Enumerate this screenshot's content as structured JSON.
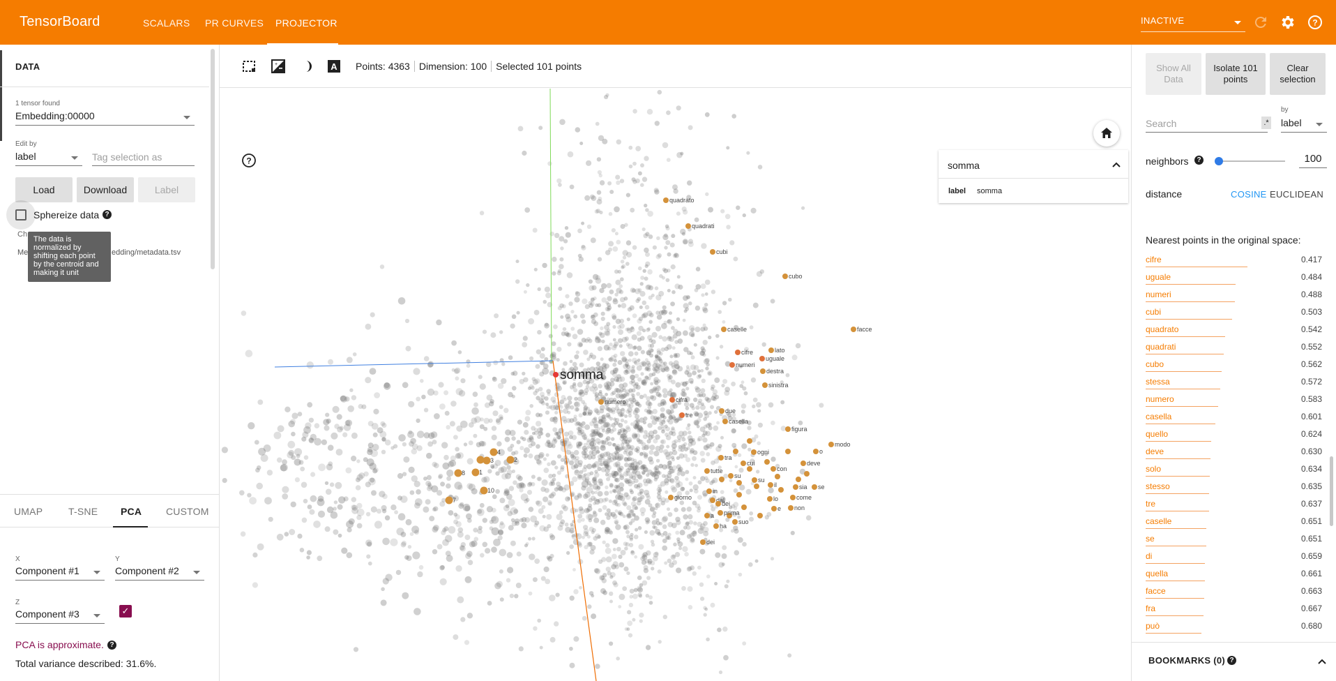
{
  "app": {
    "brand": "TensorBoard",
    "nav": [
      "SCALARS",
      "PR CURVES",
      "PROJECTOR"
    ],
    "active_tab": "PROJECTOR",
    "run_status": "INACTIVE"
  },
  "left": {
    "data_title": "DATA",
    "tensor_count": "1 tensor found",
    "tensor_select": "Embedding:00000",
    "edit_by_label": "Edit by",
    "edit_by_value": "label",
    "tag_placeholder": "Tag selection as",
    "buttons": {
      "load": "Load",
      "download": "Download",
      "label": "Label"
    },
    "sphereize_label": "Sphereize data",
    "sphereize_tooltip": "The data is normalized by shifting each point by the centroid and making it unit",
    "checkpoint_partial": "Ch",
    "metadata_partial": "Me",
    "metadata_path": "edding/metadata.tsv",
    "projection_tabs": [
      "UMAP",
      "T-SNE",
      "PCA",
      "CUSTOM"
    ],
    "active_projection": "PCA",
    "pca": {
      "x_label": "X",
      "x_value": "Component #1",
      "y_label": "Y",
      "y_value": "Component #2",
      "z_label": "Z",
      "z_value": "Component #3",
      "z_enabled": true,
      "approx": "PCA is approximate.",
      "variance": "Total variance described: 31.6%."
    }
  },
  "main": {
    "stats": {
      "points": "Points: 4363",
      "dimension": "Dimension: 100",
      "selected": "Selected 101 points"
    },
    "inspect": {
      "title": "somma",
      "key": "label",
      "value": "somma"
    },
    "focus_label": "somma",
    "labels": {
      "quadrato": "quadrato",
      "quadrati": "quadrati",
      "cubi": "cubi",
      "cubo": "cubo",
      "caselle": "caselle",
      "facce": "facce",
      "lato": "lato",
      "cifre": "cifre",
      "uguale": "uguale",
      "numeri": "numeri",
      "destra": "destra",
      "sinistra": "sinistra",
      "numero": "numero",
      "cifra": "cifra",
      "tre": "tre",
      "due": "due",
      "casella": "casella",
      "figura": "figura",
      "modo": "modo",
      "n4": "4",
      "n2": "2",
      "n5": "5",
      "n3": "3",
      "n8": "8",
      "n1": "1",
      "n10": "10",
      "n7": "7",
      "tra": "tra",
      "ogni": "ogni",
      "cui": "cui",
      "con": "con",
      "dev": "deve",
      "o": "o",
      "tutte": "tutte",
      "su": "su",
      "isu": "su",
      "il": "il",
      "sia": "sia",
      "se": "se",
      "giorno": "giorno",
      "lo": "lo",
      "come": "come",
      "dal": "dal",
      "in": "in",
      "dei": "dei",
      "e": "e",
      "non": "non",
      "prima": "prima",
      "a": "a",
      "suo": "suo",
      "ha": "ha",
      "dei2": "dei"
    }
  },
  "right": {
    "buttons": {
      "show_all": "Show All Data",
      "isolate": "Isolate 101 points",
      "clear": "Clear selection"
    },
    "search_placeholder": "Search",
    "regex": ".*",
    "by_label": "by",
    "by_value": "label",
    "neighbors_label": "neighbors",
    "neighbors_value": "100",
    "neighbors_fraction": 0.01,
    "distance_label": "distance",
    "distance_options": [
      "COSINE",
      "EUCLIDEAN"
    ],
    "distance_selected": "COSINE",
    "nearest_title": "Nearest points in the original space:",
    "nearest": [
      {
        "label": "cifre",
        "value": "0.417"
      },
      {
        "label": "uguale",
        "value": "0.484"
      },
      {
        "label": "numeri",
        "value": "0.488"
      },
      {
        "label": "cubi",
        "value": "0.503"
      },
      {
        "label": "quadrato",
        "value": "0.542"
      },
      {
        "label": "quadrati",
        "value": "0.552"
      },
      {
        "label": "cubo",
        "value": "0.562"
      },
      {
        "label": "stessa",
        "value": "0.572"
      },
      {
        "label": "numero",
        "value": "0.583"
      },
      {
        "label": "casella",
        "value": "0.601"
      },
      {
        "label": "quello",
        "value": "0.624"
      },
      {
        "label": "deve",
        "value": "0.630"
      },
      {
        "label": "solo",
        "value": "0.634"
      },
      {
        "label": "stesso",
        "value": "0.635"
      },
      {
        "label": "tre",
        "value": "0.637"
      },
      {
        "label": "caselle",
        "value": "0.651"
      },
      {
        "label": "se",
        "value": "0.651"
      },
      {
        "label": "di",
        "value": "0.659"
      },
      {
        "label": "quella",
        "value": "0.661"
      },
      {
        "label": "facce",
        "value": "0.663"
      },
      {
        "label": "fra",
        "value": "0.667"
      },
      {
        "label": "può",
        "value": "0.680"
      }
    ],
    "bookmarks_title": "BOOKMARKS (0)"
  },
  "colors": {
    "accent": "#f57c00",
    "pca_accent": "#880e4f",
    "link_blue": "#2196f3"
  }
}
